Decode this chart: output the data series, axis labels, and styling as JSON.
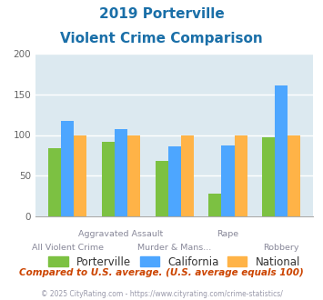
{
  "title_line1": "2019 Porterville",
  "title_line2": "Violent Crime Comparison",
  "categories": [
    "All Violent Crime",
    "Aggravated Assault",
    "Murder & Mans...",
    "Rape",
    "Robbery"
  ],
  "series": {
    "Porterville": [
      84,
      92,
      68,
      28,
      97
    ],
    "California": [
      117,
      107,
      86,
      87,
      161
    ],
    "National": [
      100,
      100,
      100,
      100,
      100
    ]
  },
  "colors": {
    "Porterville": "#7cc142",
    "California": "#4da6ff",
    "National": "#ffb347"
  },
  "ylim": [
    0,
    200
  ],
  "yticks": [
    0,
    50,
    100,
    150,
    200
  ],
  "footnote": "Compared to U.S. average. (U.S. average equals 100)",
  "copyright": "© 2025 CityRating.com - https://www.cityrating.com/crime-statistics/",
  "title_color": "#1a6fa8",
  "footnote_color": "#cc4400",
  "copyright_color": "#9999aa",
  "bg_color": "#dce9f0",
  "bar_width": 0.24
}
